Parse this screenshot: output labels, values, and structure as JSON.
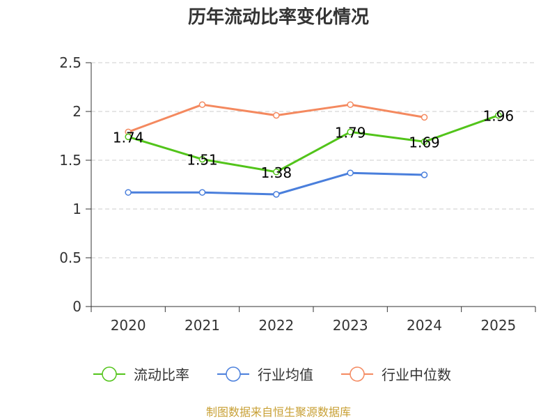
{
  "chart_data": {
    "type": "line",
    "title": "历年流动比率变化情况",
    "categories": [
      "2020",
      "2021",
      "2022",
      "2023",
      "2024",
      "2025"
    ],
    "y_ticks": [
      "0",
      "0.5",
      "1",
      "1.5",
      "2",
      "2.5"
    ],
    "ylim": [
      0,
      2.5
    ],
    "grid": true,
    "legend_position": "bottom",
    "series": [
      {
        "name": "流动比率",
        "color": "#52c41a",
        "values": [
          1.74,
          1.51,
          1.38,
          1.79,
          1.69,
          1.96
        ],
        "labels": [
          "1.74",
          "1.51",
          "1.38",
          "1.79",
          "1.69",
          "1.96"
        ],
        "show_labels": true
      },
      {
        "name": "行业均值",
        "color": "#4a7fdc",
        "values": [
          1.17,
          1.17,
          1.15,
          1.37,
          1.35,
          null
        ],
        "show_labels": false
      },
      {
        "name": "行业中位数",
        "color": "#f4895f",
        "values": [
          1.79,
          2.07,
          1.96,
          2.07,
          1.94,
          null
        ],
        "show_labels": false
      }
    ]
  },
  "footer": {
    "source": "制图数据来自恒生聚源数据库",
    "source_color": "#c8a035"
  }
}
